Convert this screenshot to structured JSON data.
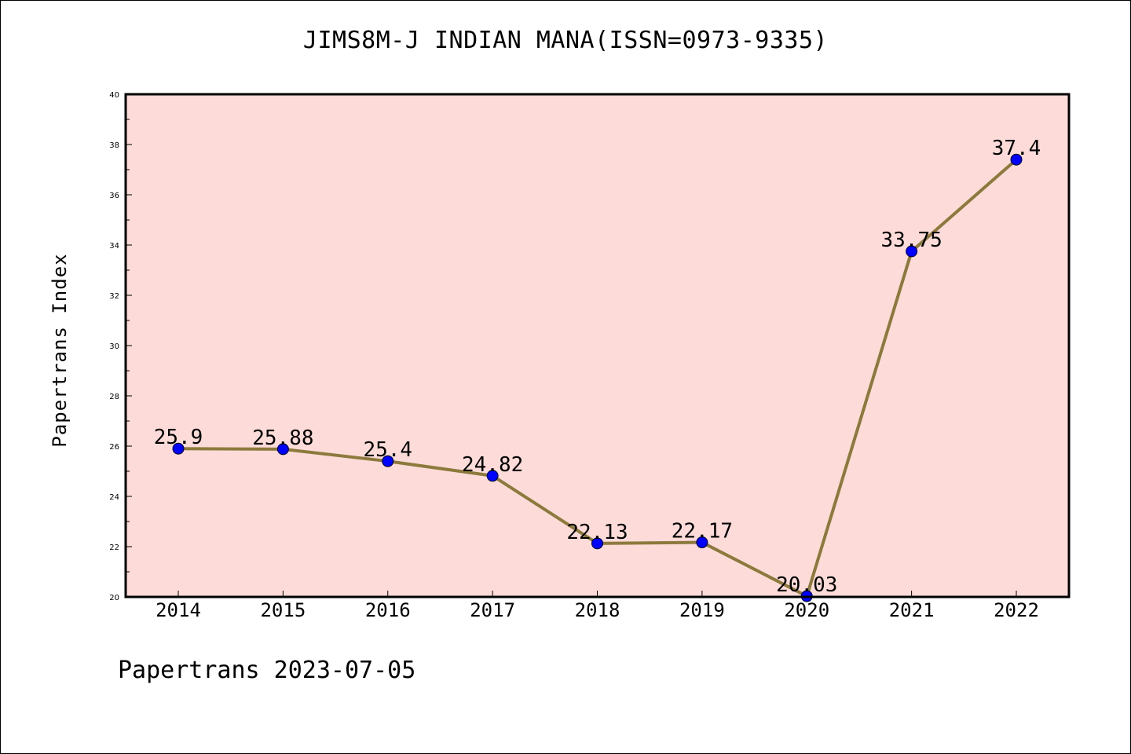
{
  "chart_data": {
    "type": "line",
    "title": "JIMS8M-J INDIAN MANA(ISSN=0973-9335)",
    "xlabel": "",
    "ylabel": "Papertrans Index",
    "categories": [
      "2014",
      "2015",
      "2016",
      "2017",
      "2018",
      "2019",
      "2020",
      "2021",
      "2022"
    ],
    "series": [
      {
        "values": [
          25.9,
          25.88,
          25.4,
          24.82,
          22.13,
          22.17,
          20.03,
          33.75,
          37.4
        ],
        "labels": [
          "25.9",
          "25.88",
          "25.4",
          "24.82",
          "22.13",
          "22.17",
          "20.03",
          "33.75",
          "37.4"
        ]
      }
    ],
    "ylim": [
      20,
      40
    ],
    "yticks": [
      20,
      22,
      24,
      26,
      28,
      30,
      32,
      34,
      36,
      38,
      40
    ],
    "grid": false,
    "legend": "none"
  },
  "footer": {
    "note": "Papertrans 2023-07-05"
  },
  "colors": {
    "plot_background": "#fddbd8",
    "line": "#8b7a3c",
    "marker": "#0000ff",
    "axis": "#000000",
    "page_background": "#ffffff"
  }
}
